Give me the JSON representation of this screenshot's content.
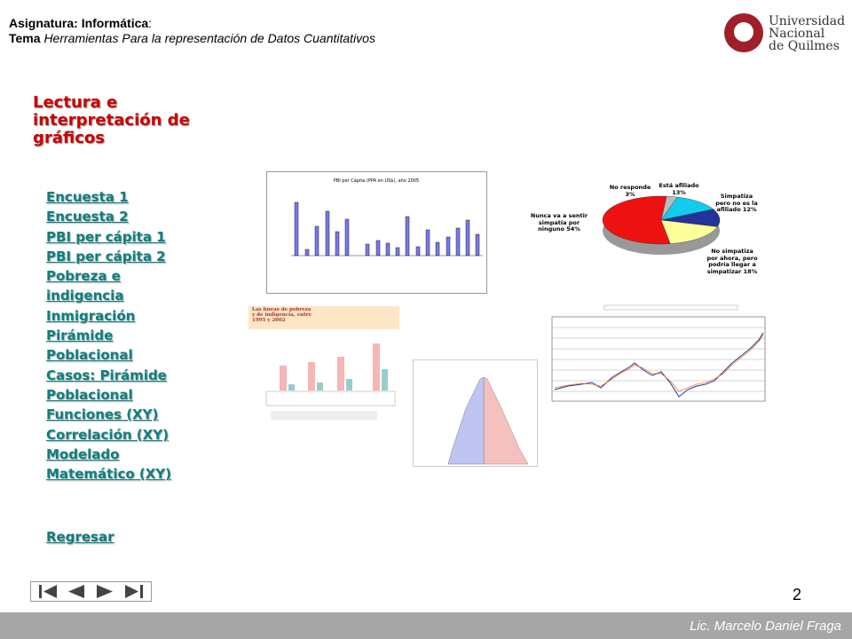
{
  "header": {
    "subject_label": "Asignatura:",
    "subject": "Informática",
    "subject_colon": ":",
    "topic_label": "Tema",
    "topic": "Herramientas Para la representación de Datos Cuantitativos"
  },
  "logo": {
    "line1": "Universidad",
    "line2": "Nacional",
    "line3": "de Quilmes"
  },
  "title": "Lectura e interpretación de gráficos",
  "links": [
    "Encuesta 1",
    "Encuesta 2",
    "PBI per cápita 1",
    "PBI per cápita 2",
    "Pobreza e indigencia",
    "Inmigración",
    "Pirámide Poblacional",
    "Casos: Pirámide Poblacional",
    "Funciones (XY)",
    "Correlación (XY)",
    "Modelado Matemático (XY)"
  ],
  "back": "Regresar",
  "thumbnails": {
    "gdp_title": "PBI per Cápita (PPA en US$), año 2005",
    "poverty_title": "Las líneas de pobreza y de indigencia, entre 1995 y 2002"
  },
  "pie": {
    "values": [
      54,
      3,
      13,
      12,
      18
    ],
    "colors": [
      "#ee1111",
      "#bbbbbb",
      "#11ccee",
      "#223399",
      "#ffff99"
    ],
    "labels": [
      "Nunca va a sentir simpatía por ninguno 54%",
      "No responde 3%",
      "Está afiliado 13%",
      "Simpatiza pero no es la afiliado 12%",
      "No simpatiza por ahora, pero podría llegar a simpatizar 18%"
    ]
  },
  "page_number": "2",
  "footer": "Lic. Marcelo Daniel Fraga"
}
